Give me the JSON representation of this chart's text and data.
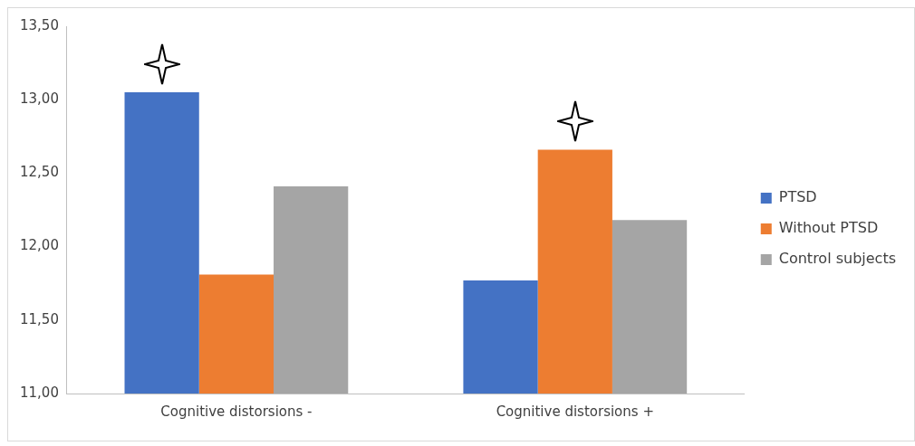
{
  "chart_data": {
    "type": "bar",
    "categories": [
      "Cognitive distorsions -",
      "Cognitive distorsions +"
    ],
    "series": [
      {
        "name": "PTSD",
        "color": "#4472c4",
        "values": [
          13.05,
          11.77
        ]
      },
      {
        "name": "Without PTSD",
        "color": "#ed7d31",
        "values": [
          11.81,
          12.66
        ]
      },
      {
        "name": "Control subjects",
        "color": "#a5a5a5",
        "values": [
          12.41,
          12.18
        ]
      }
    ],
    "ylim": [
      11,
      13.5
    ],
    "yticks": [
      {
        "value": 11,
        "label": "11,00"
      },
      {
        "value": 11.5,
        "label": "11,50"
      },
      {
        "value": 12,
        "label": "12,00"
      },
      {
        "value": 12.5,
        "label": "12,50"
      },
      {
        "value": 13,
        "label": "13,00"
      },
      {
        "value": 13.5,
        "label": "13,50"
      }
    ],
    "grid": false,
    "legend": "right"
  }
}
